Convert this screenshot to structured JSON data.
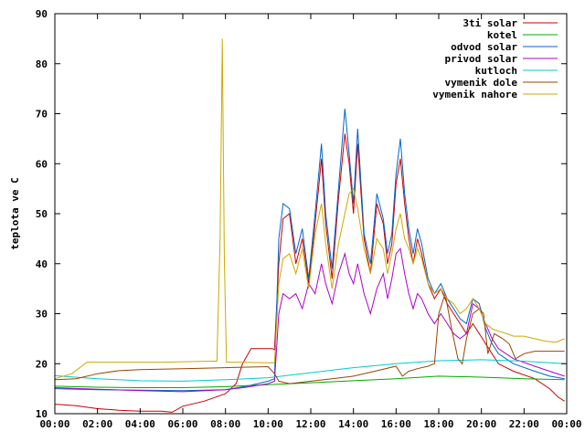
{
  "chart_data": {
    "type": "line",
    "title": "",
    "xlabel": "",
    "ylabel": "teplota ve C",
    "xlim": [
      0,
      24
    ],
    "ylim": [
      10,
      90
    ],
    "x_ticks": [
      "00:00",
      "02:00",
      "04:00",
      "06:00",
      "08:00",
      "10:00",
      "12:00",
      "14:00",
      "16:00",
      "18:00",
      "20:00",
      "22:00",
      "00:00"
    ],
    "y_ticks": [
      10,
      20,
      30,
      40,
      50,
      60,
      70,
      80,
      90
    ],
    "grid": false,
    "legend_position": "top-right",
    "series": [
      {
        "name": "3ti solar",
        "color": "#cc0000",
        "points": [
          [
            0,
            11.9
          ],
          [
            1,
            11.6
          ],
          [
            2,
            11
          ],
          [
            3,
            10.7
          ],
          [
            4,
            10.5
          ],
          [
            5,
            10.5
          ],
          [
            5.5,
            10.3
          ],
          [
            6,
            11.5
          ],
          [
            7,
            12.5
          ],
          [
            8,
            14
          ],
          [
            8.5,
            16
          ],
          [
            8.8,
            20
          ],
          [
            9.2,
            23
          ],
          [
            9.8,
            23
          ],
          [
            10.2,
            23
          ],
          [
            10.3,
            22.8
          ],
          [
            10.5,
            40
          ],
          [
            10.7,
            49
          ],
          [
            11,
            50
          ],
          [
            11.3,
            40
          ],
          [
            11.6,
            45
          ],
          [
            11.9,
            36
          ],
          [
            12.2,
            48
          ],
          [
            12.5,
            61
          ],
          [
            12.7,
            48
          ],
          [
            13,
            37
          ],
          [
            13.3,
            53
          ],
          [
            13.6,
            66
          ],
          [
            13.8,
            60
          ],
          [
            14,
            50
          ],
          [
            14.2,
            64
          ],
          [
            14.5,
            45
          ],
          [
            14.8,
            38
          ],
          [
            15.1,
            52
          ],
          [
            15.4,
            48
          ],
          [
            15.6,
            40
          ],
          [
            15.8,
            44
          ],
          [
            16.0,
            56
          ],
          [
            16.2,
            61
          ],
          [
            16.4,
            52
          ],
          [
            16.6,
            45
          ],
          [
            16.8,
            40
          ],
          [
            17.0,
            45
          ],
          [
            17.2,
            42
          ],
          [
            17.5,
            36
          ],
          [
            17.8,
            33
          ],
          [
            18.1,
            35
          ],
          [
            18.4,
            32
          ],
          [
            18.7,
            30
          ],
          [
            19.0,
            28
          ],
          [
            19.3,
            26
          ],
          [
            19.6,
            28
          ],
          [
            19.9,
            26
          ],
          [
            20.2,
            24
          ],
          [
            20.5,
            22
          ],
          [
            20.8,
            20
          ],
          [
            21.5,
            18.5
          ],
          [
            22.5,
            17
          ],
          [
            23.2,
            15
          ],
          [
            23.6,
            13.3
          ],
          [
            23.9,
            12.5
          ]
        ]
      },
      {
        "name": "kotel",
        "color": "#00aa00",
        "points": [
          [
            0,
            15.5
          ],
          [
            2,
            15.3
          ],
          [
            4,
            15.2
          ],
          [
            6,
            15.2
          ],
          [
            8,
            15.4
          ],
          [
            10,
            15.8
          ],
          [
            12,
            16.2
          ],
          [
            14,
            16.6
          ],
          [
            16,
            17
          ],
          [
            18,
            17.5
          ],
          [
            20,
            17.3
          ],
          [
            22,
            17
          ],
          [
            23.9,
            16.8
          ]
        ]
      },
      {
        "name": "odvod solar",
        "color": "#0066cc",
        "points": [
          [
            0,
            15
          ],
          [
            2,
            14.8
          ],
          [
            4,
            14.7
          ],
          [
            6,
            14.6
          ],
          [
            8,
            14.8
          ],
          [
            9,
            15.5
          ],
          [
            10,
            16.5
          ],
          [
            10.3,
            17
          ],
          [
            10.5,
            45
          ],
          [
            10.7,
            52
          ],
          [
            11,
            51
          ],
          [
            11.3,
            42
          ],
          [
            11.6,
            47
          ],
          [
            11.9,
            37
          ],
          [
            12.2,
            50
          ],
          [
            12.5,
            64
          ],
          [
            12.7,
            50
          ],
          [
            13,
            39
          ],
          [
            13.3,
            55
          ],
          [
            13.6,
            71
          ],
          [
            13.8,
            62
          ],
          [
            14,
            52
          ],
          [
            14.2,
            67
          ],
          [
            14.5,
            46
          ],
          [
            14.8,
            40
          ],
          [
            15.1,
            54
          ],
          [
            15.4,
            49
          ],
          [
            15.6,
            42
          ],
          [
            15.8,
            46
          ],
          [
            16.0,
            58
          ],
          [
            16.2,
            65
          ],
          [
            16.4,
            54
          ],
          [
            16.6,
            47
          ],
          [
            16.8,
            42
          ],
          [
            17.0,
            47
          ],
          [
            17.2,
            44
          ],
          [
            17.5,
            37
          ],
          [
            17.8,
            34
          ],
          [
            18.1,
            36
          ],
          [
            18.4,
            33
          ],
          [
            18.7,
            31
          ],
          [
            19.0,
            29
          ],
          [
            19.3,
            28
          ],
          [
            19.6,
            33
          ],
          [
            19.9,
            32
          ],
          [
            20.2,
            27
          ],
          [
            20.5,
            24
          ],
          [
            20.8,
            22
          ],
          [
            21.5,
            20
          ],
          [
            22.5,
            18.5
          ],
          [
            23.2,
            17.5
          ],
          [
            23.9,
            17
          ]
        ]
      },
      {
        "name": "privod solar",
        "color": "#aa00cc",
        "points": [
          [
            0,
            15.2
          ],
          [
            2,
            14.9
          ],
          [
            4,
            14.6
          ],
          [
            6,
            14.4
          ],
          [
            8,
            14.8
          ],
          [
            9,
            15.3
          ],
          [
            10,
            16
          ],
          [
            10.3,
            16.5
          ],
          [
            10.5,
            30
          ],
          [
            10.7,
            34
          ],
          [
            11,
            33
          ],
          [
            11.3,
            34
          ],
          [
            11.6,
            31
          ],
          [
            11.9,
            36
          ],
          [
            12.2,
            34
          ],
          [
            12.5,
            40
          ],
          [
            12.7,
            36
          ],
          [
            13,
            32
          ],
          [
            13.3,
            38
          ],
          [
            13.6,
            42
          ],
          [
            13.8,
            38
          ],
          [
            14,
            36
          ],
          [
            14.2,
            40
          ],
          [
            14.5,
            34
          ],
          [
            14.8,
            30
          ],
          [
            15.1,
            35
          ],
          [
            15.4,
            38
          ],
          [
            15.6,
            33
          ],
          [
            15.8,
            37
          ],
          [
            16.0,
            42
          ],
          [
            16.2,
            43
          ],
          [
            16.4,
            38
          ],
          [
            16.6,
            34
          ],
          [
            16.8,
            31
          ],
          [
            17.0,
            34
          ],
          [
            17.2,
            33
          ],
          [
            17.5,
            30
          ],
          [
            17.8,
            28
          ],
          [
            18.1,
            30
          ],
          [
            18.4,
            28
          ],
          [
            18.7,
            26
          ],
          [
            19.0,
            25
          ],
          [
            19.3,
            26
          ],
          [
            19.6,
            32
          ],
          [
            19.9,
            31
          ],
          [
            20.2,
            28
          ],
          [
            20.5,
            25
          ],
          [
            20.8,
            23
          ],
          [
            21.5,
            21
          ],
          [
            22.5,
            19.5
          ],
          [
            23.2,
            18.5
          ],
          [
            23.9,
            17.5
          ]
        ]
      },
      {
        "name": "kutloch",
        "color": "#00cccc",
        "points": [
          [
            0,
            17.6
          ],
          [
            2,
            17
          ],
          [
            4,
            16.6
          ],
          [
            6,
            16.5
          ],
          [
            8,
            16.8
          ],
          [
            10,
            17.2
          ],
          [
            12,
            18.2
          ],
          [
            14,
            19.2
          ],
          [
            16,
            20
          ],
          [
            18,
            20.6
          ],
          [
            20,
            20.8
          ],
          [
            22,
            20.5
          ],
          [
            23.9,
            20
          ]
        ]
      },
      {
        "name": "vymenik dole",
        "color": "#994400",
        "points": [
          [
            0,
            16.8
          ],
          [
            1,
            17
          ],
          [
            2,
            18
          ],
          [
            3,
            18.6
          ],
          [
            4,
            18.8
          ],
          [
            6,
            19
          ],
          [
            8,
            19.2
          ],
          [
            10,
            19.4
          ],
          [
            10.3,
            18
          ],
          [
            10.5,
            16.5
          ],
          [
            11,
            16
          ],
          [
            12,
            16.5
          ],
          [
            13,
            17
          ],
          [
            14,
            17.5
          ],
          [
            15,
            18.5
          ],
          [
            16,
            19.5
          ],
          [
            16.3,
            17.5
          ],
          [
            16.6,
            18.5
          ],
          [
            17,
            19
          ],
          [
            17.5,
            19.5
          ],
          [
            17.8,
            20
          ],
          [
            18,
            30
          ],
          [
            18.3,
            34
          ],
          [
            18.6,
            27
          ],
          [
            18.9,
            21
          ],
          [
            19.1,
            20
          ],
          [
            19.3,
            25
          ],
          [
            19.6,
            30
          ],
          [
            19.9,
            31
          ],
          [
            20.1,
            30
          ],
          [
            20.3,
            22
          ],
          [
            20.6,
            26
          ],
          [
            21,
            25
          ],
          [
            21.3,
            24
          ],
          [
            21.6,
            21
          ],
          [
            22,
            22
          ],
          [
            22.5,
            22.5
          ],
          [
            23.2,
            22.5
          ],
          [
            23.9,
            22.5
          ]
        ]
      },
      {
        "name": "vymenik nahore",
        "color": "#ccaa00",
        "points": [
          [
            0,
            17
          ],
          [
            0.8,
            18
          ],
          [
            1.5,
            20.3
          ],
          [
            3,
            20.3
          ],
          [
            5,
            20.3
          ],
          [
            7.3,
            20.5
          ],
          [
            7.6,
            20.5
          ],
          [
            7.75,
            45
          ],
          [
            7.85,
            85
          ],
          [
            7.95,
            40
          ],
          [
            8.05,
            20.3
          ],
          [
            8.5,
            20.3
          ],
          [
            10,
            20.2
          ],
          [
            10.3,
            20.2
          ],
          [
            10.5,
            36
          ],
          [
            10.7,
            41
          ],
          [
            11,
            42
          ],
          [
            11.3,
            38
          ],
          [
            11.6,
            43
          ],
          [
            11.9,
            35
          ],
          [
            12.2,
            46
          ],
          [
            12.5,
            52
          ],
          [
            12.7,
            44
          ],
          [
            13,
            35
          ],
          [
            13.3,
            44
          ],
          [
            13.6,
            50
          ],
          [
            13.8,
            54
          ],
          [
            14,
            55
          ],
          [
            14.2,
            51
          ],
          [
            14.5,
            43
          ],
          [
            14.8,
            38
          ],
          [
            15.1,
            45
          ],
          [
            15.4,
            43
          ],
          [
            15.6,
            38
          ],
          [
            15.8,
            42
          ],
          [
            16.0,
            47
          ],
          [
            16.2,
            50
          ],
          [
            16.4,
            45
          ],
          [
            16.6,
            43
          ],
          [
            16.8,
            40
          ],
          [
            17.0,
            43
          ],
          [
            17.2,
            41
          ],
          [
            17.5,
            36
          ],
          [
            17.8,
            34
          ],
          [
            18.1,
            35
          ],
          [
            18.4,
            33
          ],
          [
            18.7,
            32
          ],
          [
            19.0,
            30
          ],
          [
            19.3,
            31
          ],
          [
            19.6,
            33
          ],
          [
            19.9,
            31
          ],
          [
            20.2,
            28
          ],
          [
            20.5,
            27
          ],
          [
            20.8,
            26.5
          ],
          [
            21.2,
            26
          ],
          [
            21.5,
            25.5
          ],
          [
            22,
            25.5
          ],
          [
            22.5,
            25
          ],
          [
            23,
            24.5
          ],
          [
            23.5,
            24.3
          ],
          [
            23.9,
            25
          ]
        ]
      }
    ]
  }
}
